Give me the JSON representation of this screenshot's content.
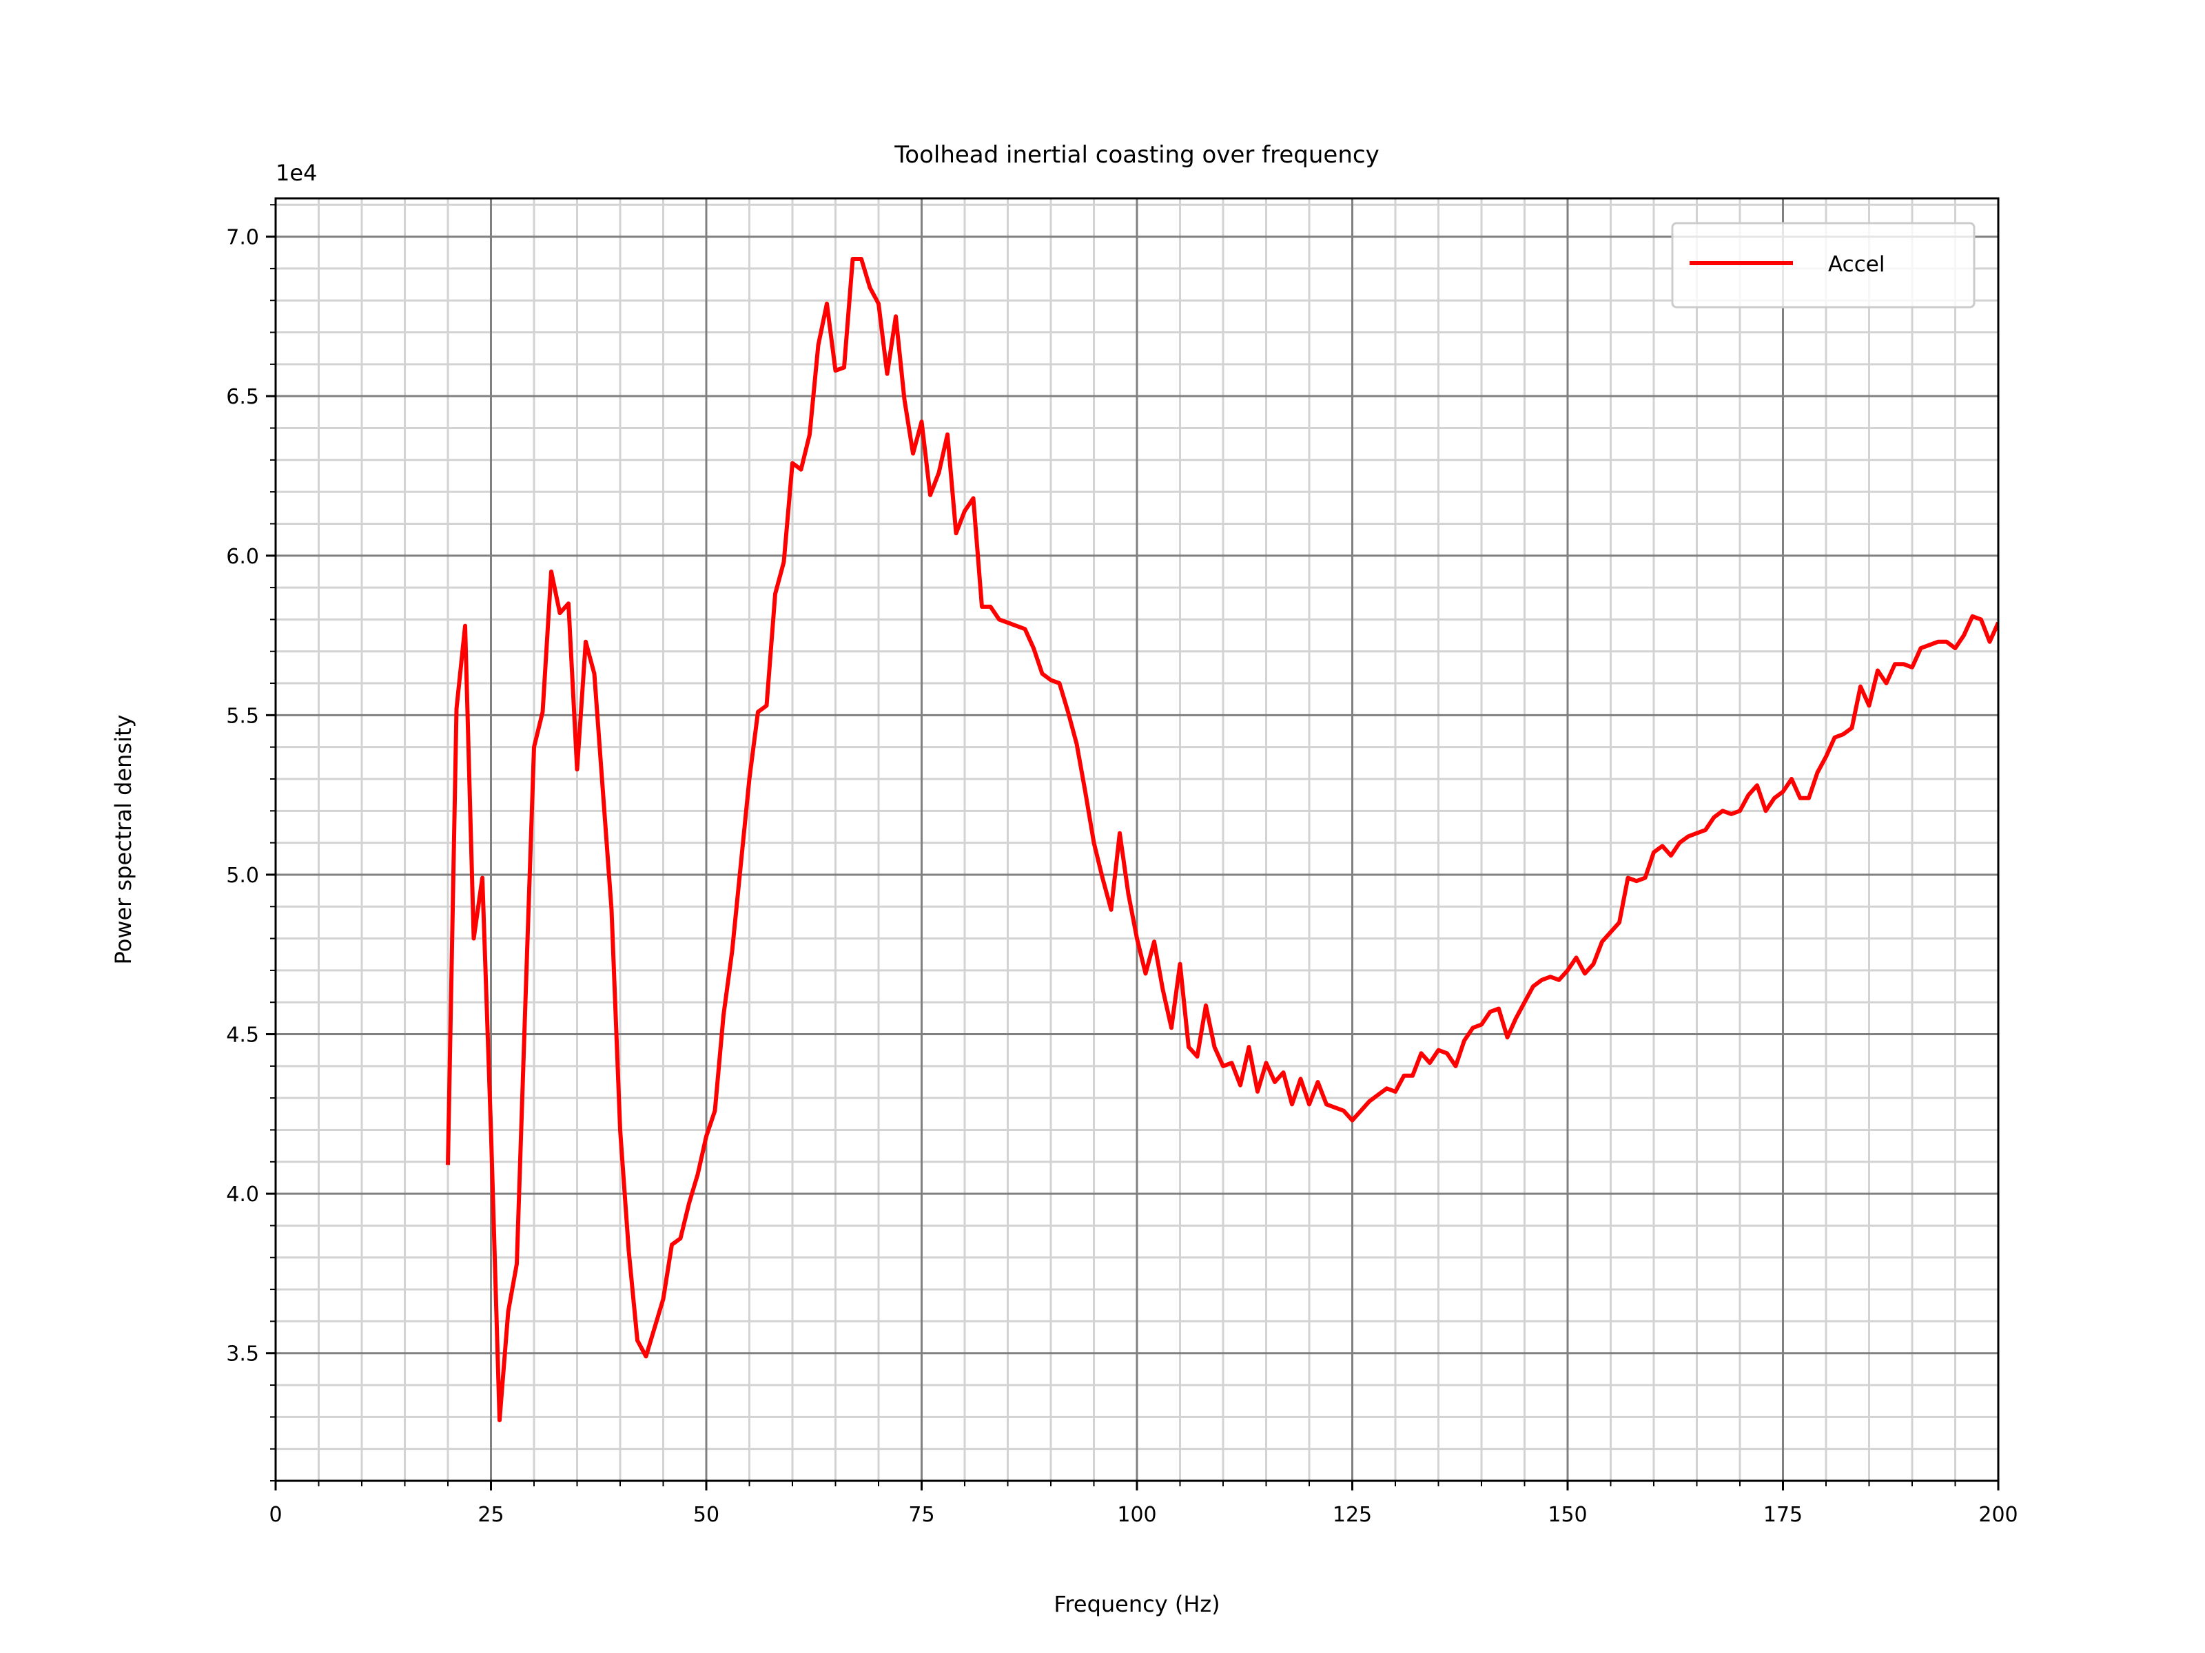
{
  "chart_data": {
    "type": "line",
    "title": "Toolhead inertial coasting over frequency",
    "xlabel": "Frequency (Hz)",
    "ylabel": "Power spectral density",
    "y_offset_label": "1e4",
    "y_scale_factor": 10000,
    "xlim": [
      0,
      200
    ],
    "ylim": [
      31000,
      71200
    ],
    "x_major_ticks": [
      0,
      25,
      50,
      75,
      100,
      125,
      150,
      175,
      200
    ],
    "x_tick_labels": [
      "0",
      "25",
      "50",
      "75",
      "100",
      "125",
      "150",
      "175",
      "200"
    ],
    "x_minor_step": 5,
    "y_major_ticks": [
      35000,
      40000,
      45000,
      50000,
      55000,
      60000,
      65000,
      70000
    ],
    "y_tick_labels": [
      "3.5",
      "4.0",
      "4.5",
      "5.0",
      "5.5",
      "6.0",
      "6.5",
      "7.0"
    ],
    "y_minor_step": 1000,
    "grid": true,
    "legend_position": "top-right",
    "series": [
      {
        "name": "Accel",
        "color": "#ff0000",
        "x": [
          20,
          21,
          22,
          23,
          24,
          25,
          26,
          27,
          28,
          29,
          30,
          31,
          32,
          33,
          34,
          35,
          36,
          37,
          38,
          39,
          40,
          41,
          42,
          43,
          44,
          45,
          46,
          47,
          48,
          49,
          50,
          51,
          52,
          53,
          54,
          55,
          56,
          57,
          58,
          59,
          60,
          61,
          62,
          63,
          64,
          65,
          66,
          67,
          68,
          69,
          70,
          71,
          72,
          73,
          74,
          75,
          76,
          77,
          78,
          79,
          80,
          81,
          82,
          83,
          84,
          85,
          86,
          87,
          88,
          89,
          90,
          91,
          92,
          93,
          94,
          95,
          96,
          97,
          98,
          99,
          100,
          101,
          102,
          103,
          104,
          105,
          106,
          107,
          108,
          109,
          110,
          111,
          112,
          113,
          114,
          115,
          116,
          117,
          118,
          119,
          120,
          121,
          122,
          123,
          124,
          125,
          126,
          127,
          128,
          129,
          130,
          131,
          132,
          133,
          134,
          135,
          136,
          137,
          138,
          139,
          140,
          141,
          142,
          143,
          144,
          145,
          146,
          147,
          148,
          149,
          150,
          151,
          152,
          153,
          154,
          155,
          156,
          157,
          158,
          159,
          160,
          161,
          162,
          163,
          164,
          165,
          166,
          167,
          168,
          169,
          170,
          171,
          172,
          173,
          174,
          175,
          176,
          177,
          178,
          179,
          180,
          181,
          182,
          183,
          184,
          185,
          186,
          187,
          188,
          189,
          190,
          191,
          192,
          193,
          194,
          195,
          196,
          197,
          198,
          199,
          200
        ],
        "y": [
          40900,
          55200,
          57800,
          48000,
          49900,
          42000,
          32900,
          36300,
          37800,
          46000,
          54000,
          55100,
          59500,
          58200,
          58500,
          53300,
          57300,
          56300,
          52600,
          48900,
          42000,
          38200,
          35400,
          34900,
          35800,
          36700,
          38400,
          38600,
          39700,
          40600,
          41800,
          42600,
          45600,
          47600,
          50300,
          53000,
          55100,
          55300,
          58800,
          59800,
          62900,
          62700,
          63800,
          66600,
          67900,
          65800,
          65900,
          69300,
          69300,
          68400,
          67900,
          65700,
          67500,
          64900,
          63200,
          64200,
          61900,
          62600,
          63800,
          60700,
          61400,
          61800,
          58400,
          58400,
          58000,
          57900,
          57800,
          57700,
          57100,
          56300,
          56100,
          56000,
          55100,
          54100,
          52600,
          51000,
          49900,
          48900,
          51300,
          49400,
          48000,
          46900,
          47900,
          46400,
          45200,
          47200,
          44600,
          44300,
          45900,
          44600,
          44000,
          44100,
          43400,
          44600,
          43200,
          44100,
          43500,
          43800,
          42800,
          43600,
          42800,
          43500,
          42800,
          42700,
          42600,
          42300,
          42600,
          42900,
          43100,
          43300,
          43200,
          43700,
          43700,
          44400,
          44100,
          44500,
          44400,
          44000,
          44800,
          45200,
          45300,
          45700,
          45800,
          44900,
          45500,
          46000,
          46500,
          46700,
          46800,
          46700,
          47000,
          47400,
          46900,
          47200,
          47900,
          48200,
          48500,
          49900,
          49800,
          49900,
          50700,
          50900,
          50600,
          51000,
          51200,
          51300,
          51400,
          51800,
          52000,
          51900,
          52000,
          52500,
          52800,
          52000,
          52400,
          52600,
          53000,
          52400,
          52400,
          53200,
          53700,
          54300,
          54400,
          54600,
          55900,
          55300,
          56400,
          56000,
          56600,
          56600,
          56500,
          57100,
          57200,
          57300,
          57300,
          57100,
          57500,
          58100,
          58000,
          57300,
          57900
        ]
      }
    ]
  }
}
